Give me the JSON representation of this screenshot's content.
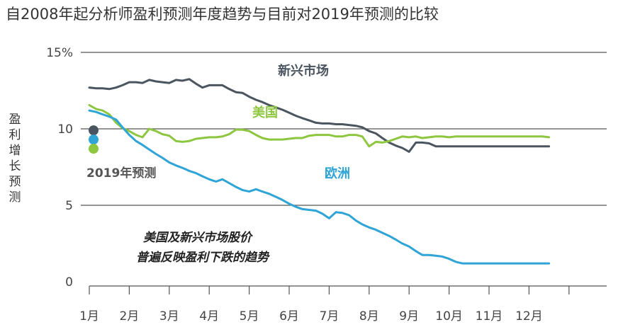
{
  "chart_data": {
    "type": "line",
    "title": "自2008年起分析师盈利预测年度趋势与目前对2019年预测的比较",
    "xlabel": "",
    "ylabel": "盈利增长预测",
    "ylim": [
      0,
      15
    ],
    "y_ticks": [
      {
        "value": 15,
        "label": "15%"
      },
      {
        "value": 10,
        "label": "10"
      },
      {
        "value": 5,
        "label": "5"
      },
      {
        "value": 0,
        "label": "0"
      }
    ],
    "categories": [
      "1月",
      "2月",
      "3月",
      "4月",
      "5月",
      "6月",
      "7月",
      "8月",
      "9月",
      "10月",
      "11月",
      "12月"
    ],
    "series": [
      {
        "name": "新兴市场",
        "color": "#4a5560",
        "x": [
          0,
          0.17,
          0.33,
          0.5,
          0.67,
          0.83,
          1,
          1.17,
          1.33,
          1.5,
          1.67,
          1.83,
          2,
          2.17,
          2.33,
          2.5,
          2.67,
          2.83,
          3,
          3.17,
          3.33,
          3.5,
          3.67,
          3.83,
          4,
          4.17,
          4.33,
          4.5,
          4.67,
          4.83,
          5,
          5.17,
          5.33,
          5.5,
          5.67,
          5.83,
          6,
          6.17,
          6.33,
          6.5,
          6.67,
          6.83,
          7,
          7.17,
          7.33,
          7.5,
          7.67,
          7.83,
          8,
          8.17,
          8.33,
          8.5,
          8.67,
          8.83,
          9,
          9.17,
          9.33,
          9.5,
          9.67,
          9.83,
          10,
          10.17,
          10.33,
          10.5,
          10.67,
          10.83,
          11,
          11.17,
          11.33,
          11.5
        ],
        "values": [
          12.7,
          12.65,
          12.65,
          12.6,
          12.7,
          12.85,
          13.05,
          13.05,
          13.0,
          13.2,
          13.1,
          13.05,
          13.0,
          13.2,
          13.15,
          13.25,
          12.95,
          12.7,
          12.85,
          12.85,
          12.85,
          12.6,
          12.4,
          12.35,
          12.1,
          11.9,
          11.75,
          11.55,
          11.4,
          11.25,
          11.05,
          10.85,
          10.7,
          10.55,
          10.4,
          10.35,
          10.35,
          10.3,
          10.3,
          10.25,
          10.2,
          10.1,
          9.85,
          9.7,
          9.4,
          9.1,
          8.9,
          8.75,
          8.5,
          9.1,
          9.1,
          9.05,
          8.85,
          8.85,
          8.85,
          8.85,
          8.85,
          8.85,
          8.85,
          8.85,
          8.85,
          8.85,
          8.85,
          8.85,
          8.85,
          8.85,
          8.85,
          8.85,
          8.85,
          8.85
        ]
      },
      {
        "name": "美国",
        "color": "#8dc63f",
        "x": [
          0,
          0.17,
          0.33,
          0.5,
          0.67,
          0.83,
          1,
          1.17,
          1.33,
          1.5,
          1.67,
          1.83,
          2,
          2.17,
          2.33,
          2.5,
          2.67,
          2.83,
          3,
          3.17,
          3.33,
          3.5,
          3.67,
          3.83,
          4,
          4.17,
          4.33,
          4.5,
          4.67,
          4.83,
          5,
          5.17,
          5.33,
          5.5,
          5.67,
          5.83,
          6,
          6.17,
          6.33,
          6.5,
          6.67,
          6.83,
          7,
          7.17,
          7.33,
          7.5,
          7.67,
          7.83,
          8,
          8.17,
          8.33,
          8.5,
          8.67,
          8.83,
          9,
          9.17,
          9.33,
          9.5,
          9.67,
          9.83,
          10,
          10.17,
          10.33,
          10.5,
          10.67,
          10.83,
          11,
          11.17,
          11.33,
          11.5
        ],
        "values": [
          11.55,
          11.3,
          11.2,
          10.95,
          10.4,
          10.05,
          9.85,
          9.6,
          9.45,
          10.0,
          9.85,
          9.65,
          9.55,
          9.2,
          9.15,
          9.2,
          9.35,
          9.4,
          9.45,
          9.45,
          9.5,
          9.65,
          9.95,
          9.95,
          9.85,
          9.6,
          9.4,
          9.3,
          9.3,
          9.3,
          9.35,
          9.4,
          9.4,
          9.55,
          9.6,
          9.6,
          9.6,
          9.5,
          9.5,
          9.6,
          9.6,
          9.5,
          8.85,
          9.15,
          9.1,
          9.2,
          9.35,
          9.5,
          9.45,
          9.5,
          9.4,
          9.45,
          9.5,
          9.5,
          9.45,
          9.5,
          9.5,
          9.5,
          9.5,
          9.5,
          9.5,
          9.5,
          9.5,
          9.5,
          9.5,
          9.5,
          9.5,
          9.5,
          9.5,
          9.45
        ]
      },
      {
        "name": "欧洲",
        "color": "#2fa4d6",
        "x": [
          0,
          0.17,
          0.33,
          0.5,
          0.67,
          0.83,
          1,
          1.17,
          1.33,
          1.5,
          1.67,
          1.83,
          2,
          2.17,
          2.33,
          2.5,
          2.67,
          2.83,
          3,
          3.17,
          3.33,
          3.5,
          3.67,
          3.83,
          4,
          4.17,
          4.33,
          4.5,
          4.67,
          4.83,
          5,
          5.17,
          5.33,
          5.5,
          5.67,
          5.83,
          6,
          6.17,
          6.33,
          6.5,
          6.67,
          6.83,
          7,
          7.17,
          7.33,
          7.5,
          7.67,
          7.83,
          8,
          8.17,
          8.33,
          8.5,
          8.67,
          8.83,
          9,
          9.17,
          9.33,
          9.5,
          9.67,
          9.83,
          10,
          10.17,
          10.33,
          10.5,
          10.67,
          10.83,
          11,
          11.17,
          11.33,
          11.5
        ],
        "values": [
          11.2,
          11.1,
          10.95,
          10.8,
          10.6,
          10.1,
          9.6,
          9.2,
          8.95,
          8.65,
          8.35,
          8.1,
          7.8,
          7.6,
          7.45,
          7.25,
          7.1,
          6.9,
          6.7,
          6.55,
          6.7,
          6.45,
          6.2,
          6.0,
          5.9,
          6.05,
          5.9,
          5.75,
          5.55,
          5.35,
          5.1,
          4.9,
          4.75,
          4.7,
          4.65,
          4.45,
          4.15,
          4.55,
          4.5,
          4.35,
          4.0,
          3.75,
          3.55,
          3.4,
          3.2,
          3.0,
          2.75,
          2.5,
          2.3,
          2.0,
          1.75,
          1.75,
          1.7,
          1.65,
          1.5,
          1.3,
          1.2,
          1.2,
          1.2,
          1.2,
          1.2,
          1.2,
          1.2,
          1.2,
          1.2,
          1.2,
          1.2,
          1.2,
          1.2,
          1.2
        ]
      }
    ],
    "forecast_2019": {
      "label": "2019年预测",
      "points": [
        {
          "series": "新兴市场",
          "value": 9.9,
          "color": "#4a5560"
        },
        {
          "series": "欧洲",
          "value": 9.3,
          "color": "#2fa4d6"
        },
        {
          "series": "美国",
          "value": 8.7,
          "color": "#8dc63f"
        }
      ]
    },
    "annotation": [
      "美国及新兴市场股价",
      "普遍反映盈利下跌的趋势"
    ],
    "grid": true,
    "gridline_color": "#555555"
  }
}
